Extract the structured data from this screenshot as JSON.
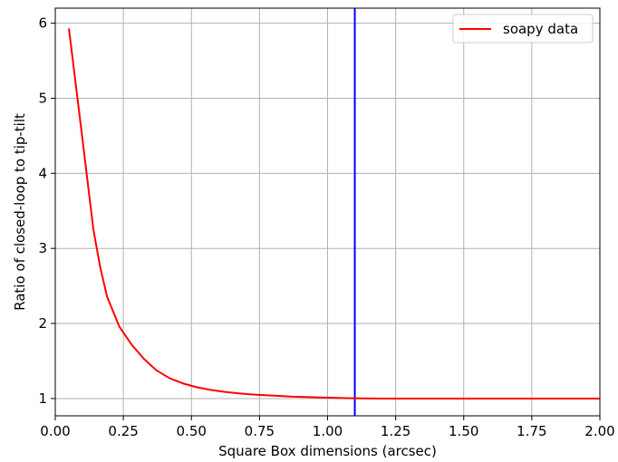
{
  "chart_data": {
    "type": "line",
    "title": "",
    "xlabel": "Square Box dimensions (arcsec)",
    "ylabel": "Ratio of closed-loop to tip-tilt",
    "xlim": [
      0.0,
      2.0
    ],
    "ylim": [
      0.77,
      6.2
    ],
    "xticks": [
      "0.00",
      "0.25",
      "0.50",
      "0.75",
      "1.00",
      "1.25",
      "1.50",
      "1.75",
      "2.00"
    ],
    "yticks": [
      "1",
      "2",
      "3",
      "4",
      "5",
      "6"
    ],
    "grid": true,
    "legend_position": "top-right",
    "series": [
      {
        "name": "soapy data",
        "color": "#ff0000",
        "x": [
          0.05,
          0.095,
          0.14,
          0.165,
          0.19,
          0.235,
          0.28,
          0.325,
          0.37,
          0.42,
          0.47,
          0.52,
          0.57,
          0.62,
          0.67,
          0.72,
          0.77,
          0.82,
          0.87,
          0.92,
          0.97,
          1.02,
          1.07,
          1.12,
          1.2,
          1.3,
          1.4,
          1.5,
          1.6,
          1.7,
          1.8,
          1.9,
          2.0
        ],
        "y": [
          5.93,
          4.6,
          3.25,
          2.75,
          2.36,
          1.96,
          1.72,
          1.53,
          1.38,
          1.27,
          1.2,
          1.15,
          1.115,
          1.09,
          1.07,
          1.055,
          1.045,
          1.035,
          1.025,
          1.02,
          1.015,
          1.01,
          1.005,
          1.002,
          1.0,
          1.0,
          1.0,
          1.0,
          1.0,
          1.0,
          1.0,
          1.0,
          1.0
        ]
      }
    ],
    "vline": {
      "x": 1.1,
      "color": "#0000ff"
    }
  }
}
